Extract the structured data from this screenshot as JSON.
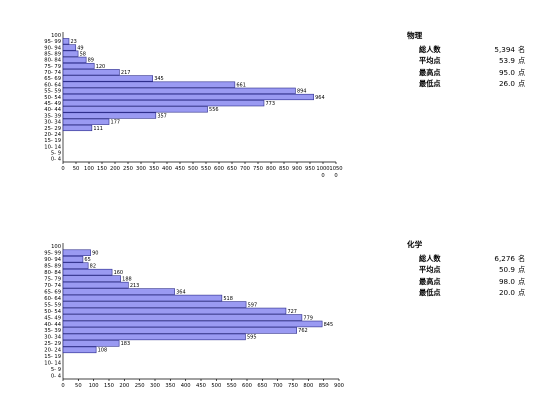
{
  "panels": [
    {
      "subject": "物理",
      "stats": [
        {
          "label": "総人数",
          "value": "5,394",
          "unit": "名"
        },
        {
          "label": "平均点",
          "value": "53.9",
          "unit": "点"
        },
        {
          "label": "最高点",
          "value": "95.0",
          "unit": "点"
        },
        {
          "label": "最低点",
          "value": "26.0",
          "unit": "点"
        }
      ]
    },
    {
      "subject": "化学",
      "stats": [
        {
          "label": "総人数",
          "value": "6,276",
          "unit": "名"
        },
        {
          "label": "平均点",
          "value": "50.9",
          "unit": "点"
        },
        {
          "label": "最高点",
          "value": "98.0",
          "unit": "点"
        },
        {
          "label": "最低点",
          "value": "20.0",
          "unit": "点"
        }
      ]
    }
  ],
  "chart_data": [
    {
      "type": "bar",
      "orientation": "horizontal",
      "categories": [
        "100",
        "95- 99",
        "90- 94",
        "85- 89",
        "80- 84",
        "75- 79",
        "70- 74",
        "65- 69",
        "60- 64",
        "55- 59",
        "50- 54",
        "45- 49",
        "40- 44",
        "35- 39",
        "30- 34",
        "25- 29",
        "20- 24",
        "15- 19",
        "10- 14",
        "5- 9",
        "0- 4"
      ],
      "values": [
        0,
        23,
        49,
        58,
        89,
        120,
        217,
        345,
        661,
        894,
        964,
        773,
        556,
        357,
        177,
        111,
        0,
        0,
        0,
        0,
        0
      ],
      "xlim": [
        0,
        1050
      ],
      "xticks": [
        "0",
        "50",
        "100",
        "150",
        "200",
        "250",
        "300",
        "350",
        "400",
        "450",
        "500",
        "550",
        "600",
        "650",
        "700",
        "750",
        "800",
        "850",
        "900",
        "950",
        "1000",
        "1050"
      ],
      "xticks_row2": {
        "1000": "0",
        "1050": "0"
      },
      "title": "",
      "xlabel": "",
      "ylabel": ""
    },
    {
      "type": "bar",
      "orientation": "horizontal",
      "categories": [
        "100",
        "95- 99",
        "90- 94",
        "85- 89",
        "80- 84",
        "75- 79",
        "70- 74",
        "65- 69",
        "60- 64",
        "55- 59",
        "50- 54",
        "45- 49",
        "40- 44",
        "35- 39",
        "30- 34",
        "25- 29",
        "20- 24",
        "15- 19",
        "10- 14",
        "5- 9",
        "0- 4"
      ],
      "values": [
        0,
        90,
        65,
        82,
        160,
        188,
        213,
        364,
        518,
        597,
        727,
        779,
        845,
        762,
        595,
        183,
        108,
        0,
        0,
        0,
        0
      ],
      "xlim": [
        0,
        900
      ],
      "xticks": [
        "0",
        "50",
        "100",
        "150",
        "200",
        "250",
        "300",
        "350",
        "400",
        "450",
        "500",
        "550",
        "600",
        "650",
        "700",
        "750",
        "800",
        "850",
        "900"
      ],
      "title": "",
      "xlabel": "",
      "ylabel": ""
    }
  ]
}
